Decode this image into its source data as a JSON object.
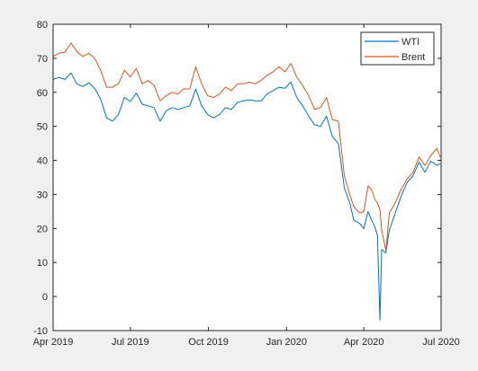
{
  "colors": {
    "figure_background": "#f0f0f0",
    "axes_background": "#ffffff",
    "axis": "#262626",
    "legend_border": "#262626"
  },
  "chart_data": {
    "type": "line",
    "title": "",
    "xlabel": "",
    "ylabel": "",
    "xlim": [
      "2019-04-01",
      "2020-07-01"
    ],
    "ylim": [
      -10,
      80
    ],
    "x_ticks": [
      "2019-04-01",
      "2019-07-01",
      "2019-10-01",
      "2020-01-01",
      "2020-04-01",
      "2020-07-01"
    ],
    "x_tick_labels": [
      "Apr 2019",
      "Jul 2019",
      "Oct 2019",
      "Jan 2020",
      "Apr 2020",
      "Jul 2020"
    ],
    "y_ticks": [
      -10,
      0,
      10,
      20,
      30,
      40,
      50,
      60,
      70,
      80
    ],
    "y_tick_labels": [
      "-10",
      "0",
      "10",
      "20",
      "30",
      "40",
      "50",
      "60",
      "70",
      "80"
    ],
    "grid": false,
    "legend_position": "top-right",
    "series": [
      {
        "name": "WTI",
        "color": "#0072bd",
        "points": [
          [
            "2019-04-01",
            63.8
          ],
          [
            "2019-04-08",
            64.4
          ],
          [
            "2019-04-15",
            63.8
          ],
          [
            "2019-04-22",
            65.7
          ],
          [
            "2019-04-29",
            62.5
          ],
          [
            "2019-05-06",
            61.7
          ],
          [
            "2019-05-13",
            62.8
          ],
          [
            "2019-05-20",
            61.2
          ],
          [
            "2019-05-27",
            58.0
          ],
          [
            "2019-06-03",
            52.5
          ],
          [
            "2019-06-10",
            51.5
          ],
          [
            "2019-06-17",
            53.5
          ],
          [
            "2019-06-24",
            58.5
          ],
          [
            "2019-07-01",
            57.3
          ],
          [
            "2019-07-08",
            59.8
          ],
          [
            "2019-07-15",
            56.5
          ],
          [
            "2019-07-22",
            56.0
          ],
          [
            "2019-07-29",
            55.5
          ],
          [
            "2019-08-05",
            51.5
          ],
          [
            "2019-08-12",
            54.5
          ],
          [
            "2019-08-19",
            55.5
          ],
          [
            "2019-08-26",
            55.0
          ],
          [
            "2019-09-02",
            55.5
          ],
          [
            "2019-09-09",
            56.0
          ],
          [
            "2019-09-16",
            61.0
          ],
          [
            "2019-09-23",
            56.0
          ],
          [
            "2019-09-30",
            53.5
          ],
          [
            "2019-10-07",
            52.5
          ],
          [
            "2019-10-14",
            53.5
          ],
          [
            "2019-10-21",
            55.5
          ],
          [
            "2019-10-28",
            55.0
          ],
          [
            "2019-11-04",
            57.0
          ],
          [
            "2019-11-11",
            57.5
          ],
          [
            "2019-11-18",
            57.8
          ],
          [
            "2019-11-25",
            57.5
          ],
          [
            "2019-12-02",
            57.5
          ],
          [
            "2019-12-09",
            59.5
          ],
          [
            "2019-12-16",
            60.5
          ],
          [
            "2019-12-23",
            61.5
          ],
          [
            "2019-12-30",
            61.2
          ],
          [
            "2020-01-06",
            63.0
          ],
          [
            "2020-01-13",
            58.5
          ],
          [
            "2020-01-20",
            56.0
          ],
          [
            "2020-01-27",
            53.0
          ],
          [
            "2020-02-03",
            50.5
          ],
          [
            "2020-02-10",
            50.0
          ],
          [
            "2020-02-17",
            53.0
          ],
          [
            "2020-02-24",
            47.0
          ],
          [
            "2020-03-02",
            45.0
          ],
          [
            "2020-03-09",
            32.0
          ],
          [
            "2020-03-16",
            27.0
          ],
          [
            "2020-03-20",
            22.5
          ],
          [
            "2020-03-27",
            21.5
          ],
          [
            "2020-04-01",
            20.0
          ],
          [
            "2020-04-06",
            25.0
          ],
          [
            "2020-04-10",
            22.5
          ],
          [
            "2020-04-14",
            20.5
          ],
          [
            "2020-04-17",
            18.0
          ],
          [
            "2020-04-20",
            -6.9
          ],
          [
            "2020-04-22",
            13.8
          ],
          [
            "2020-04-27",
            12.8
          ],
          [
            "2020-05-01",
            19.5
          ],
          [
            "2020-05-08",
            24.5
          ],
          [
            "2020-05-15",
            29.5
          ],
          [
            "2020-05-22",
            33.5
          ],
          [
            "2020-05-29",
            35.5
          ],
          [
            "2020-06-05",
            39.5
          ],
          [
            "2020-06-12",
            36.5
          ],
          [
            "2020-06-19",
            39.8
          ],
          [
            "2020-06-26",
            38.5
          ],
          [
            "2020-06-30",
            39.0
          ]
        ]
      },
      {
        "name": "Brent",
        "color": "#d95319",
        "points": [
          [
            "2019-04-01",
            70.5
          ],
          [
            "2019-04-08",
            71.5
          ],
          [
            "2019-04-15",
            71.8
          ],
          [
            "2019-04-22",
            74.5
          ],
          [
            "2019-04-29",
            72.0
          ],
          [
            "2019-05-06",
            70.5
          ],
          [
            "2019-05-13",
            71.5
          ],
          [
            "2019-05-20",
            70.0
          ],
          [
            "2019-05-27",
            66.5
          ],
          [
            "2019-06-03",
            61.5
          ],
          [
            "2019-06-10",
            61.5
          ],
          [
            "2019-06-17",
            62.5
          ],
          [
            "2019-06-24",
            66.5
          ],
          [
            "2019-07-01",
            64.5
          ],
          [
            "2019-07-08",
            67.0
          ],
          [
            "2019-07-15",
            62.5
          ],
          [
            "2019-07-22",
            63.5
          ],
          [
            "2019-07-29",
            62.0
          ],
          [
            "2019-08-05",
            57.5
          ],
          [
            "2019-08-12",
            59.0
          ],
          [
            "2019-08-19",
            60.0
          ],
          [
            "2019-08-26",
            59.5
          ],
          [
            "2019-09-02",
            61.0
          ],
          [
            "2019-09-09",
            61.0
          ],
          [
            "2019-09-16",
            67.5
          ],
          [
            "2019-09-23",
            62.5
          ],
          [
            "2019-09-30",
            59.0
          ],
          [
            "2019-10-07",
            58.5
          ],
          [
            "2019-10-14",
            59.5
          ],
          [
            "2019-10-21",
            61.5
          ],
          [
            "2019-10-28",
            60.5
          ],
          [
            "2019-11-04",
            62.5
          ],
          [
            "2019-11-11",
            62.5
          ],
          [
            "2019-11-18",
            63.0
          ],
          [
            "2019-11-25",
            62.5
          ],
          [
            "2019-12-02",
            63.5
          ],
          [
            "2019-12-09",
            65.0
          ],
          [
            "2019-12-16",
            66.0
          ],
          [
            "2019-12-23",
            67.5
          ],
          [
            "2019-12-30",
            66.0
          ],
          [
            "2020-01-06",
            68.5
          ],
          [
            "2020-01-13",
            64.5
          ],
          [
            "2020-01-20",
            62.0
          ],
          [
            "2020-01-27",
            59.0
          ],
          [
            "2020-02-03",
            55.0
          ],
          [
            "2020-02-10",
            55.5
          ],
          [
            "2020-02-17",
            58.5
          ],
          [
            "2020-02-24",
            52.0
          ],
          [
            "2020-03-02",
            51.5
          ],
          [
            "2020-03-09",
            35.5
          ],
          [
            "2020-03-16",
            29.5
          ],
          [
            "2020-03-20",
            26.5
          ],
          [
            "2020-03-27",
            24.5
          ],
          [
            "2020-04-01",
            25.0
          ],
          [
            "2020-04-06",
            32.5
          ],
          [
            "2020-04-10",
            31.5
          ],
          [
            "2020-04-14",
            28.5
          ],
          [
            "2020-04-17",
            27.5
          ],
          [
            "2020-04-20",
            25.5
          ],
          [
            "2020-04-22",
            19.5
          ],
          [
            "2020-04-27",
            13.5
          ],
          [
            "2020-05-01",
            24.5
          ],
          [
            "2020-05-08",
            27.5
          ],
          [
            "2020-05-15",
            31.5
          ],
          [
            "2020-05-22",
            34.5
          ],
          [
            "2020-05-29",
            36.5
          ],
          [
            "2020-06-05",
            41.0
          ],
          [
            "2020-06-12",
            38.5
          ],
          [
            "2020-06-19",
            41.5
          ],
          [
            "2020-06-26",
            43.5
          ],
          [
            "2020-06-30",
            41.0
          ]
        ]
      }
    ]
  }
}
